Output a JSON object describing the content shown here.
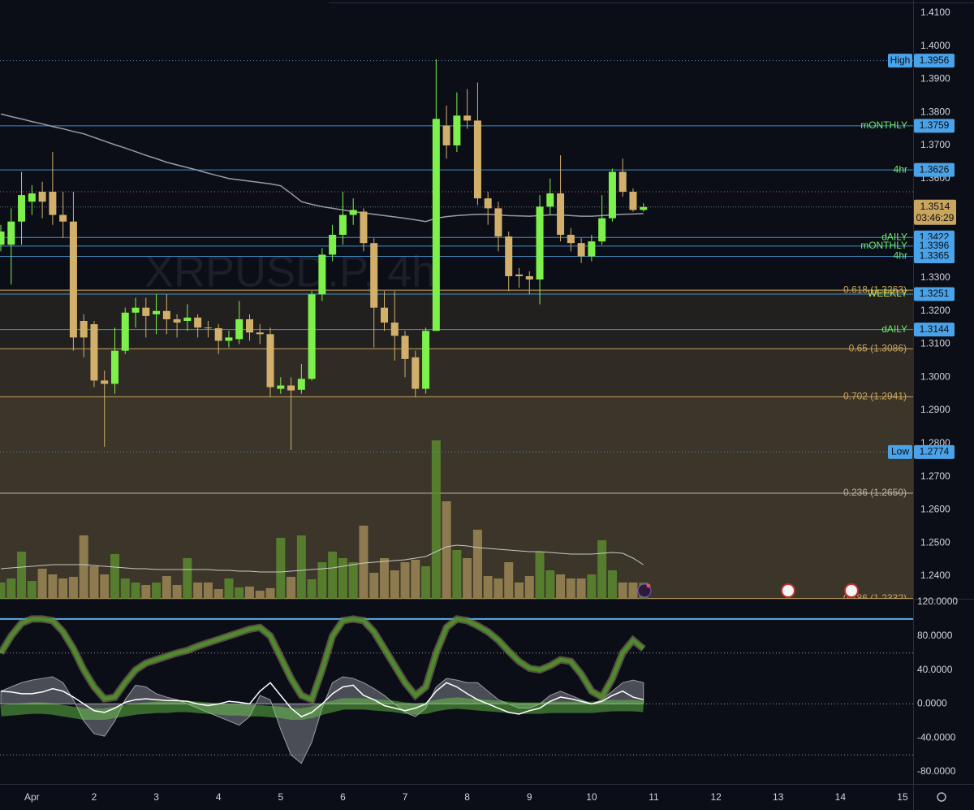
{
  "chart_data": {
    "type": "candlestick",
    "title": "XRPUSD.P, 4h",
    "xlim": [
      -0.08,
      88.02
    ],
    "xticks": [
      {
        "value": 3,
        "label": "Apr"
      },
      {
        "value": 9,
        "label": "2"
      },
      {
        "value": 15,
        "label": "3"
      },
      {
        "value": 21,
        "label": "4"
      },
      {
        "value": 27,
        "label": "5"
      },
      {
        "value": 33,
        "label": "6"
      },
      {
        "value": 39,
        "label": "7"
      },
      {
        "value": 45,
        "label": "8"
      },
      {
        "value": 51,
        "label": "9"
      },
      {
        "value": 57,
        "label": "10"
      },
      {
        "value": 63,
        "label": "11"
      },
      {
        "value": 69,
        "label": "12"
      },
      {
        "value": 75,
        "label": "13"
      },
      {
        "value": 81,
        "label": "14"
      },
      {
        "value": 87,
        "label": "15"
      }
    ],
    "ylim": [
      1.2331,
      1.4139
    ],
    "yticks": [
      {
        "value": 1.41,
        "label": "1.4100"
      },
      {
        "value": 1.4,
        "label": "1.4000"
      },
      {
        "value": 1.39,
        "label": "1.3900"
      },
      {
        "value": 1.38,
        "label": "1.3800"
      },
      {
        "value": 1.37,
        "label": "1.3700"
      },
      {
        "value": 1.36,
        "label": "1.3600"
      },
      {
        "value": 1.35,
        "label": "1.3500"
      },
      {
        "value": 1.34,
        "label": "1.3400"
      },
      {
        "value": 1.33,
        "label": "1.3300"
      },
      {
        "value": 1.32,
        "label": "1.3200"
      },
      {
        "value": 1.31,
        "label": "1.3100"
      },
      {
        "value": 1.3,
        "label": "1.3000"
      },
      {
        "value": 1.29,
        "label": "1.2900"
      },
      {
        "value": 1.28,
        "label": "1.2800"
      },
      {
        "value": 1.27,
        "label": "1.2700"
      },
      {
        "value": 1.26,
        "label": "1.2600"
      },
      {
        "value": 1.25,
        "label": "1.2500"
      },
      {
        "value": 1.24,
        "label": "1.2400"
      }
    ],
    "up_color": "#7df04c",
    "down_color": "#d2b06c",
    "candles": [
      [
        1.34,
        1.346,
        1.338,
        1.344
      ],
      [
        1.34,
        1.351,
        1.328,
        1.347
      ],
      [
        1.347,
        1.362,
        1.34,
        1.355
      ],
      [
        1.353,
        1.358,
        1.349,
        1.3555
      ],
      [
        1.356,
        1.359,
        1.348,
        1.353
      ],
      [
        1.356,
        1.368,
        1.346,
        1.349
      ],
      [
        1.349,
        1.356,
        1.342,
        1.347
      ],
      [
        1.347,
        1.356,
        1.308,
        1.312
      ],
      [
        1.317,
        1.319,
        1.306,
        1.312
      ],
      [
        1.316,
        1.317,
        1.297,
        1.299
      ],
      [
        1.299,
        1.302,
        1.279,
        1.298
      ],
      [
        1.298,
        1.315,
        1.295,
        1.308
      ],
      [
        1.308,
        1.321,
        1.307,
        1.3195
      ],
      [
        1.3195,
        1.324,
        1.315,
        1.321
      ],
      [
        1.321,
        1.324,
        1.312,
        1.3185
      ],
      [
        1.319,
        1.325,
        1.313,
        1.32
      ],
      [
        1.32,
        1.325,
        1.313,
        1.3175
      ],
      [
        1.3175,
        1.319,
        1.312,
        1.3165
      ],
      [
        1.317,
        1.322,
        1.314,
        1.318
      ],
      [
        1.318,
        1.319,
        1.312,
        1.315
      ],
      [
        1.315,
        1.317,
        1.312,
        1.3148
      ],
      [
        1.3148,
        1.316,
        1.307,
        1.311
      ],
      [
        1.311,
        1.314,
        1.309,
        1.312
      ],
      [
        1.3115,
        1.323,
        1.31,
        1.3175
      ],
      [
        1.3175,
        1.319,
        1.311,
        1.3135
      ],
      [
        1.3135,
        1.316,
        1.31,
        1.313
      ],
      [
        1.313,
        1.315,
        1.294,
        1.297
      ],
      [
        1.2965,
        1.3,
        1.295,
        1.2975
      ],
      [
        1.2975,
        1.3,
        1.278,
        1.296
      ],
      [
        1.2962,
        1.304,
        1.295,
        1.2995
      ],
      [
        1.2995,
        1.326,
        1.299,
        1.325
      ],
      [
        1.325,
        1.339,
        1.323,
        1.337
      ],
      [
        1.337,
        1.346,
        1.335,
        1.343
      ],
      [
        1.343,
        1.356,
        1.34,
        1.349
      ],
      [
        1.349,
        1.354,
        1.346,
        1.3505
      ],
      [
        1.35,
        1.351,
        1.338,
        1.3405
      ],
      [
        1.3405,
        1.342,
        1.309,
        1.321
      ],
      [
        1.321,
        1.326,
        1.314,
        1.3165
      ],
      [
        1.3165,
        1.326,
        1.305,
        1.3125
      ],
      [
        1.3125,
        1.314,
        1.3,
        1.3055
      ],
      [
        1.306,
        1.308,
        1.294,
        1.2965
      ],
      [
        1.2965,
        1.315,
        1.295,
        1.314
      ],
      [
        1.314,
        1.396,
        1.314,
        1.378
      ],
      [
        1.376,
        1.382,
        1.366,
        1.37
      ],
      [
        1.37,
        1.386,
        1.368,
        1.379
      ],
      [
        1.379,
        1.387,
        1.375,
        1.3775
      ],
      [
        1.3775,
        1.389,
        1.352,
        1.354
      ],
      [
        1.354,
        1.356,
        1.346,
        1.351
      ],
      [
        1.351,
        1.353,
        1.338,
        1.3425
      ],
      [
        1.3425,
        1.344,
        1.326,
        1.3305
      ],
      [
        1.331,
        1.333,
        1.327,
        1.3305
      ],
      [
        1.3305,
        1.332,
        1.325,
        1.3295
      ],
      [
        1.3295,
        1.355,
        1.322,
        1.3515
      ],
      [
        1.3515,
        1.36,
        1.349,
        1.3555
      ],
      [
        1.3555,
        1.367,
        1.341,
        1.343
      ],
      [
        1.343,
        1.345,
        1.338,
        1.3405
      ],
      [
        1.3405,
        1.342,
        1.3345,
        1.3365
      ],
      [
        1.3365,
        1.343,
        1.335,
        1.341
      ],
      [
        1.341,
        1.355,
        1.34,
        1.348
      ],
      [
        1.348,
        1.363,
        1.347,
        1.362
      ],
      [
        1.362,
        1.366,
        1.3545,
        1.356
      ],
      [
        1.356,
        1.357,
        1.35,
        1.3505
      ],
      [
        1.3505,
        1.3525,
        1.35,
        1.3514
      ]
    ],
    "ma": [
      1.3795,
      1.3787,
      1.378,
      1.3772,
      1.3765,
      1.3757,
      1.375,
      1.3742,
      1.3735,
      1.3724,
      1.3713,
      1.3702,
      1.3692,
      1.3681,
      1.367,
      1.366,
      1.3649,
      1.3641,
      1.3633,
      1.3625,
      1.3616,
      1.3608,
      1.36,
      1.3596,
      1.3592,
      1.3588,
      1.3584,
      1.3578,
      1.3555,
      1.353,
      1.3522,
      1.3515,
      1.351,
      1.3505,
      1.35,
      1.3496,
      1.3492,
      1.3488,
      1.3484,
      1.348,
      1.3475,
      1.347,
      1.348,
      1.3485,
      1.3488,
      1.349,
      1.3492,
      1.3492,
      1.349,
      1.3488,
      1.3487,
      1.3486,
      1.3488,
      1.349,
      1.349,
      1.3488,
      1.3486,
      1.3486,
      1.3488,
      1.349,
      1.3492,
      1.3493,
      1.3494
    ],
    "ma_color": "#9a9ca3",
    "volume_lim": [
      0,
      250
    ],
    "volume": [
      20,
      25,
      58,
      22,
      37,
      30,
      25,
      27,
      78,
      40,
      30,
      55,
      25,
      20,
      17,
      20,
      28,
      17,
      50,
      20,
      20,
      12,
      25,
      14,
      15,
      10,
      13,
      75,
      27,
      78,
      24,
      45,
      58,
      50,
      45,
      90,
      32,
      50,
      35,
      45,
      48,
      40,
      195,
      120,
      60,
      50,
      85,
      28,
      25,
      45,
      20,
      28,
      58,
      35,
      30,
      25,
      25,
      30,
      72,
      35,
      20,
      20,
      20
    ],
    "volume_ma": [
      37,
      38,
      39,
      40,
      41,
      42,
      42,
      42,
      42,
      41,
      40,
      39,
      38,
      37,
      37,
      36,
      36,
      36,
      36,
      36,
      36,
      35,
      35,
      34,
      34,
      33,
      33,
      33,
      34,
      35,
      36,
      37,
      38,
      40,
      42,
      44,
      45,
      46,
      47,
      48,
      50,
      52,
      58,
      64,
      66,
      65,
      63,
      62,
      61,
      60,
      59,
      58,
      58,
      57,
      56,
      55,
      55,
      55,
      56,
      57,
      56,
      50,
      42
    ],
    "volume_up_color": "#5b8a2f",
    "volume_down_color": "#9b8756",
    "levels": [
      {
        "label": "High",
        "value": 1.3956,
        "style": "dotted",
        "boxed": true
      },
      {
        "label": "mONTHLY",
        "value": 1.3759,
        "style": "solid"
      },
      {
        "label": "4hr",
        "value": 1.3626,
        "style": "solid"
      },
      {
        "label": "dAILY",
        "value": 1.3422,
        "style": "solid"
      },
      {
        "label": "mONTHLY",
        "value": 1.3396,
        "style": "solid"
      },
      {
        "label": "4hr",
        "value": 1.3365,
        "style": "solid"
      },
      {
        "label": "WEEKLY",
        "value": 1.3251,
        "style": "solid",
        "label_color": "#c8e04c"
      },
      {
        "label": "dAILY",
        "value": 1.3144,
        "style": "solid"
      },
      {
        "label": "Low",
        "value": 1.2774,
        "style": "dotted",
        "boxed": true
      }
    ],
    "level_color": "#4aa3e8",
    "level_label_color": "#6ee86a",
    "last": {
      "value": 1.3514,
      "countdown": "03:46:29",
      "color": "#c9a55e"
    },
    "marker_line": {
      "value": 1.356,
      "color": "#d06060"
    },
    "fibs": [
      {
        "label": "0.618 (1.3263)",
        "value": 1.3263,
        "fill_opacity": 0.12
      },
      {
        "label": "0.65 (1.3086)",
        "value": 1.3086,
        "fill_opacity": 0.2
      },
      {
        "label": "0.702 (1.2941)",
        "value": 1.2941,
        "fill_opacity": 0.26
      },
      {
        "label": "0.236 (1.2650)",
        "value": 1.265,
        "fill_opacity": 0.26,
        "color": "#b8b0a0"
      },
      {
        "label": "0.786 (1.2332)",
        "value": 1.2332
      }
    ],
    "fib_color": "#c9a55e",
    "oscillator": {
      "ylim": [
        -94.3,
        123.8
      ],
      "yticks": [
        {
          "value": 120,
          "label": "120.0000"
        },
        {
          "value": 80,
          "label": "80.0000"
        },
        {
          "value": 40,
          "label": "40.0000"
        },
        {
          "value": 0,
          "label": "0.0000"
        },
        {
          "value": -40,
          "label": "-40.0000"
        },
        {
          "value": -80,
          "label": "-80.0000"
        }
      ],
      "upper_line": 100,
      "dotted_lines": [
        60,
        0,
        -60
      ],
      "k": [
        60,
        80,
        95,
        100,
        100,
        98,
        85,
        65,
        40,
        20,
        6,
        8,
        25,
        40,
        48,
        52,
        56,
        60,
        63,
        68,
        72,
        76,
        80,
        84,
        88,
        90,
        80,
        55,
        30,
        10,
        5,
        40,
        80,
        98,
        100,
        98,
        85,
        65,
        45,
        25,
        10,
        20,
        60,
        90,
        100,
        98,
        92,
        85,
        75,
        62,
        50,
        42,
        40,
        45,
        52,
        50,
        35,
        15,
        8,
        30,
        60,
        75,
        65
      ],
      "gray": [
        15,
        20,
        25,
        28,
        30,
        32,
        25,
        5,
        -20,
        -35,
        -38,
        -20,
        5,
        22,
        20,
        12,
        8,
        5,
        0,
        -5,
        -10,
        -15,
        -20,
        -25,
        -15,
        10,
        5,
        -30,
        -60,
        -70,
        -45,
        -5,
        25,
        32,
        30,
        25,
        18,
        10,
        0,
        -10,
        -15,
        -5,
        20,
        30,
        28,
        25,
        25,
        15,
        5,
        0,
        -5,
        -5,
        0,
        10,
        15,
        10,
        5,
        0,
        5,
        15,
        25,
        28,
        25
      ],
      "white": [
        15,
        14,
        12,
        12,
        14,
        18,
        15,
        8,
        0,
        -8,
        -10,
        -5,
        2,
        5,
        6,
        5,
        4,
        4,
        3,
        0,
        -2,
        0,
        3,
        2,
        0,
        15,
        25,
        10,
        -5,
        -15,
        -10,
        0,
        12,
        20,
        22,
        10,
        5,
        -2,
        -5,
        -8,
        -5,
        0,
        15,
        25,
        20,
        12,
        5,
        0,
        -5,
        -10,
        -12,
        -8,
        -5,
        3,
        8,
        6,
        3,
        0,
        3,
        10,
        15,
        8,
        5
      ],
      "band": [
        -8,
        -7,
        -6,
        -5,
        -5,
        -6,
        -8,
        -10,
        -12,
        -12,
        -12,
        -10,
        -8,
        -6,
        -5,
        -4,
        -4,
        -3,
        -3,
        -4,
        -5,
        -6,
        -7,
        -7,
        -8,
        -8,
        -9,
        -10,
        -12,
        -12,
        -10,
        -6,
        -3,
        0,
        0,
        0,
        -1,
        -2,
        -3,
        -5,
        -6,
        -5,
        -2,
        0,
        1,
        0,
        -1,
        -2,
        -3,
        -4,
        -5,
        -5,
        -5,
        -4,
        -4,
        -4,
        -4,
        -4,
        -3,
        -2,
        -2,
        -2,
        -3
      ],
      "k_color": "#4f8a2e",
      "gray_color": "#9a9ca4",
      "white_color": "#ffffff",
      "band_color": "#6fd64a",
      "upper_color": "#5aaef0"
    }
  }
}
